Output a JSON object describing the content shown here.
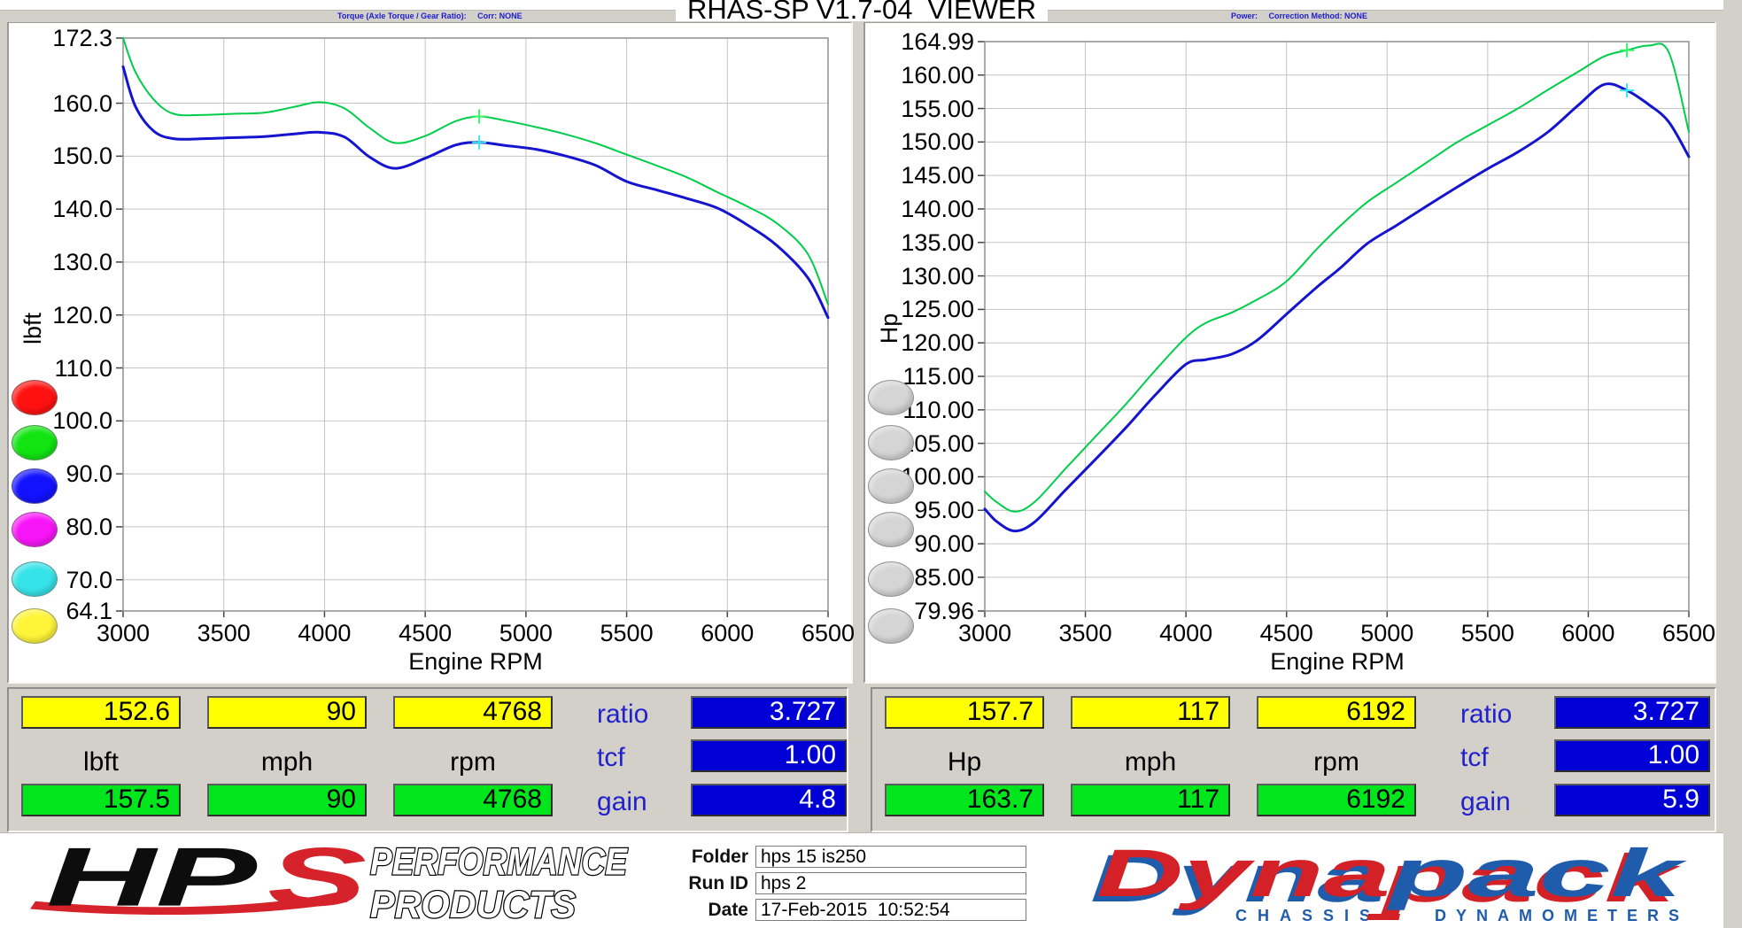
{
  "header": {
    "title": "RHAS-SP V1.7-04  VIEWER",
    "torque_toolbar": "Torque (Axle Torque / Gear Ratio):     Corr: NONE",
    "power_toolbar": "Power:     Correction Method: NONE"
  },
  "chart_data": [
    {
      "type": "line",
      "title": "Torque (Axle Torque / Gear Ratio)",
      "xlabel": "Engine RPM",
      "ylabel": "lbft",
      "xlim": [
        3000,
        6500
      ],
      "ylim": [
        64.1,
        172.3
      ],
      "grid": true,
      "x_ticks": [
        3000,
        3500,
        4000,
        4500,
        5000,
        5500,
        6000,
        6500
      ],
      "y_tick_labels": [
        "172.3",
        "160.0",
        "150.0",
        "140.0",
        "130.0",
        "120.0",
        "110.0",
        "100.0",
        "90.0",
        "80.0",
        "70.0",
        "64.1"
      ],
      "y_tick_values": [
        172.3,
        160,
        150,
        140,
        130,
        120,
        110,
        100,
        90,
        80,
        70,
        64.1
      ],
      "x": [
        3000,
        3060,
        3150,
        3250,
        3400,
        3550,
        3700,
        3850,
        3975,
        4100,
        4225,
        4350,
        4500,
        4650,
        4768,
        4900,
        5050,
        5200,
        5350,
        5500,
        5650,
        5800,
        5950,
        6100,
        6250,
        6400,
        6500
      ],
      "series": [
        {
          "name": "green-run-torque-curve",
          "color": "#00cd4a",
          "width": 2,
          "values": [
            172.3,
            166.0,
            160.8,
            158.0,
            157.8,
            158.0,
            158.2,
            159.3,
            160.2,
            159.0,
            155.3,
            152.5,
            153.8,
            156.6,
            157.5,
            156.7,
            155.5,
            154.1,
            152.4,
            150.3,
            148.2,
            146.0,
            143.2,
            140.5,
            137.2,
            131.5,
            122.0
          ]
        },
        {
          "name": "blue-run-torque-curve",
          "color": "#1414cf",
          "width": 3,
          "values": [
            166.9,
            159.5,
            154.8,
            153.3,
            153.3,
            153.5,
            153.7,
            154.2,
            154.5,
            153.6,
            149.8,
            147.7,
            149.6,
            152.1,
            152.6,
            152.0,
            151.3,
            150.0,
            148.2,
            145.2,
            143.6,
            142.0,
            140.2,
            137.0,
            133.0,
            127.0,
            119.5
          ]
        }
      ],
      "cursor": {
        "x": 4768,
        "values": [
          157.5,
          152.6
        ],
        "colors": [
          "#35f768",
          "#35e8f2"
        ]
      }
    },
    {
      "type": "line",
      "title": "Power",
      "xlabel": "Engine RPM",
      "ylabel": "Hp",
      "xlim": [
        3000,
        6500
      ],
      "ylim": [
        79.96,
        164.99
      ],
      "grid": true,
      "x_ticks": [
        3000,
        3500,
        4000,
        4500,
        5000,
        5500,
        6000,
        6500
      ],
      "y_tick_labels": [
        "164.99",
        "160.00",
        "155.00",
        "150.00",
        "145.00",
        "140.00",
        "135.00",
        "130.00",
        "125.00",
        "120.00",
        "115.00",
        "110.00",
        "105.00",
        "100.00",
        "95.00",
        "90.00",
        "85.00",
        "79.96"
      ],
      "y_tick_values": [
        164.99,
        160,
        155,
        150,
        145,
        140,
        135,
        130,
        125,
        120,
        115,
        110,
        105,
        100,
        95,
        90,
        85,
        79.96
      ],
      "x": [
        3000,
        3060,
        3150,
        3250,
        3400,
        3550,
        3700,
        3850,
        4000,
        4100,
        4225,
        4350,
        4500,
        4650,
        4768,
        4900,
        5050,
        5200,
        5350,
        5500,
        5650,
        5800,
        5950,
        6080,
        6192,
        6300,
        6400,
        6500
      ],
      "series": [
        {
          "name": "green-run-power-curve",
          "color": "#00cd4a",
          "width": 2,
          "values": [
            97.8,
            96.2,
            94.8,
            96.3,
            101.2,
            106.0,
            110.8,
            116.0,
            120.8,
            123.0,
            124.5,
            126.4,
            129.2,
            134.0,
            137.5,
            141.0,
            144.0,
            147.0,
            150.0,
            152.5,
            155.0,
            157.8,
            160.5,
            162.8,
            163.7,
            164.4,
            163.4,
            151.5
          ]
        },
        {
          "name": "blue-run-power-curve",
          "color": "#1414cf",
          "width": 3,
          "values": [
            95.2,
            93.3,
            91.9,
            93.3,
            98.0,
            102.6,
            107.3,
            112.3,
            116.8,
            117.5,
            118.3,
            120.3,
            124.3,
            128.3,
            131.2,
            134.8,
            137.6,
            140.5,
            143.3,
            146.0,
            148.5,
            151.5,
            155.5,
            158.6,
            157.7,
            155.6,
            153.0,
            147.8
          ]
        }
      ],
      "cursor": {
        "x": 6192,
        "values": [
          163.7,
          157.7
        ],
        "colors": [
          "#35f768",
          "#35e8f2"
        ]
      }
    }
  ],
  "legend": {
    "torque": [
      {
        "name": "legend-dot-red",
        "color": "#ff1111"
      },
      {
        "name": "legend-dot-green",
        "color": "#12e412"
      },
      {
        "name": "legend-dot-blue",
        "color": "#1212ff"
      },
      {
        "name": "legend-dot-magenta",
        "color": "#f714f7"
      },
      {
        "name": "legend-dot-cyan",
        "color": "#35e3e8"
      },
      {
        "name": "legend-dot-yellow",
        "color": "#fef438"
      }
    ],
    "power": [
      {
        "name": "legend-dot-gray-1",
        "color": "#d5d5d5"
      },
      {
        "name": "legend-dot-gray-2",
        "color": "#d5d5d5"
      },
      {
        "name": "legend-dot-gray-3",
        "color": "#d5d5d5"
      },
      {
        "name": "legend-dot-gray-4",
        "color": "#d5d5d5"
      },
      {
        "name": "legend-dot-gray-5",
        "color": "#d5d5d5"
      },
      {
        "name": "legend-dot-gray-6",
        "color": "#d5d5d5"
      }
    ]
  },
  "readouts": {
    "torque": {
      "cursor_values": [
        "152.6",
        "90",
        "4768"
      ],
      "units": [
        "lbft",
        "mph",
        "rpm"
      ],
      "run_values": [
        "157.5",
        "90",
        "4768"
      ],
      "params": [
        {
          "label": "ratio",
          "value": "3.727"
        },
        {
          "label": "tcf",
          "value": "1.00"
        },
        {
          "label": "gain",
          "value": "4.8"
        }
      ]
    },
    "power": {
      "cursor_values": [
        "157.7",
        "117",
        "6192"
      ],
      "units": [
        "Hp",
        "mph",
        "rpm"
      ],
      "run_values": [
        "163.7",
        "117",
        "6192"
      ],
      "params": [
        {
          "label": "ratio",
          "value": "3.727"
        },
        {
          "label": "tcf",
          "value": "1.00"
        },
        {
          "label": "gain",
          "value": "5.9"
        }
      ]
    }
  },
  "footer": {
    "hps": {
      "hp": "HP",
      "s": "S",
      "line1": "PERFORMANCE",
      "line2": "PRODUCTS"
    },
    "form": {
      "fields": [
        {
          "label": "Folder",
          "value": "hps 15 is250"
        },
        {
          "label": "Run ID",
          "value": "hps 2"
        },
        {
          "label": "Date",
          "value": "17-Feb-2015  10:52:54"
        }
      ]
    },
    "dynapack": {
      "word1": "Dyna",
      "word2": "pack",
      "sub1": "CHASSIS",
      "sub2": "DYNAMOMETERS"
    }
  },
  "colors": {
    "green_curve": "#00cd4a",
    "blue_curve": "#1414cf",
    "cursor_green": "#35f768",
    "cursor_cyan": "#35e8f2",
    "box_yellow": "#ffff00",
    "box_green": "#00e51c",
    "box_blue": "#0000d6",
    "hps_red": "#d6222a",
    "dynapack_red": "#d42127",
    "dynapack_blue": "#1f5cab"
  }
}
